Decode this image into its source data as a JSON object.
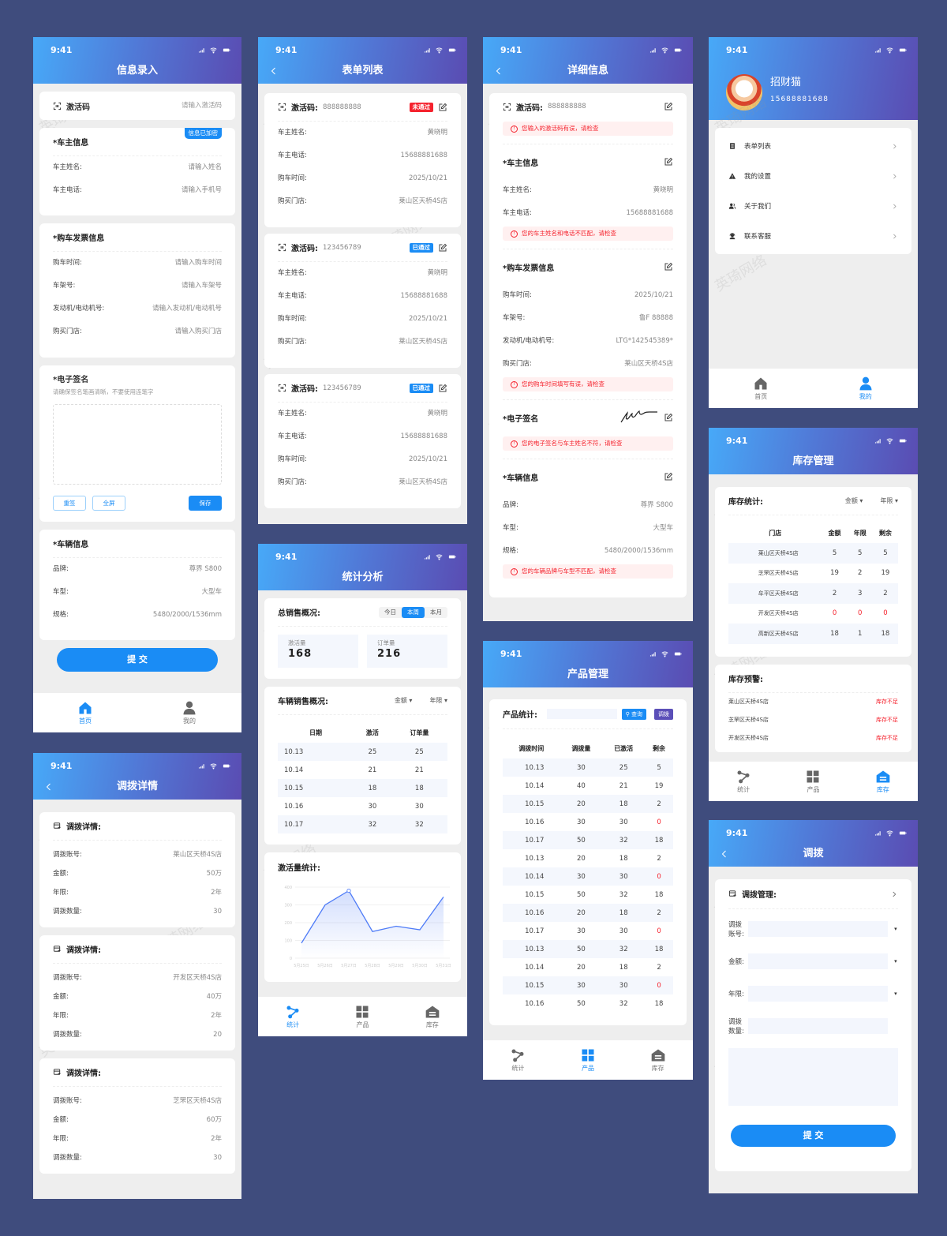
{
  "status_time": "9:41",
  "watermark": "英琦网络",
  "colors": {
    "primary": "#1a8cf5",
    "danger": "#f5222d",
    "header_start": "#47a9f8",
    "header_end": "#5a4cb2",
    "background": "#3f4c7d"
  },
  "entry": {
    "title": "信息录入",
    "code": {
      "label": "激活码",
      "placeholder": "请输入激活码",
      "icon": "scan-icon"
    },
    "owner": {
      "title": "*车主信息",
      "badge": "信息已加密",
      "rows": [
        {
          "label": "车主姓名:",
          "value": "请输入姓名"
        },
        {
          "label": "车主电话:",
          "value": "请输入手机号"
        }
      ]
    },
    "invoice": {
      "title": "*购车发票信息",
      "rows": [
        {
          "label": "购车时间:",
          "value": "请输入购车时间"
        },
        {
          "label": "车架号:",
          "value": "请输入车架号"
        },
        {
          "label": "发动机/电动机号:",
          "value": "请输入发动机/电动机号"
        },
        {
          "label": "购买门店:",
          "value": "请输入购买门店"
        }
      ]
    },
    "signature": {
      "title": "*电子签名",
      "hint": "请确保签名笔画清晰，不要使用连笔字",
      "buttons": [
        "重签",
        "全屏",
        "保存"
      ]
    },
    "vehicle": {
      "title": "*车辆信息",
      "rows": [
        {
          "label": "品牌:",
          "value": "尊界 S800"
        },
        {
          "label": "车型:",
          "value": "大型车"
        },
        {
          "label": "规格:",
          "value": "5480/2000/1536mm"
        }
      ]
    },
    "submit": "提 交",
    "tabs": [
      {
        "label": "首页",
        "icon": "home-icon",
        "active": true
      },
      {
        "label": "我的",
        "icon": "user-icon",
        "active": false
      }
    ]
  },
  "list": {
    "title": "表单列表",
    "items": [
      {
        "code_label": "激活码:",
        "code": "888888888",
        "status": "未通过",
        "status_color": "#f5222d",
        "rows": [
          {
            "label": "车主姓名:",
            "value": "黄晓明"
          },
          {
            "label": "车主电话:",
            "value": "15688881688"
          },
          {
            "label": "购车时间:",
            "value": "2025/10/21"
          },
          {
            "label": "购买门店:",
            "value": "莱山区天桥4S店"
          }
        ]
      },
      {
        "code_label": "激活码:",
        "code": "123456789",
        "status": "已通过",
        "status_color": "#1a8cf5",
        "rows": [
          {
            "label": "车主姓名:",
            "value": "黄晓明"
          },
          {
            "label": "车主电话:",
            "value": "15688881688"
          },
          {
            "label": "购车时间:",
            "value": "2025/10/21"
          },
          {
            "label": "购买门店:",
            "value": "莱山区天桥4S店"
          }
        ]
      },
      {
        "code_label": "激活码:",
        "code": "123456789",
        "status": "已通过",
        "status_color": "#1a8cf5",
        "rows": [
          {
            "label": "车主姓名:",
            "value": "黄晓明"
          },
          {
            "label": "车主电话:",
            "value": "15688881688"
          },
          {
            "label": "购车时间:",
            "value": "2025/10/21"
          },
          {
            "label": "购买门店:",
            "value": "莱山区天桥4S店"
          }
        ]
      }
    ]
  },
  "detail": {
    "title": "详细信息",
    "sections": [
      {
        "title": "激活码:",
        "value": "888888888",
        "icon": "scan-icon",
        "rows": [],
        "error": "您输入的激活码有误，请检查"
      },
      {
        "title": "*车主信息",
        "rows": [
          {
            "label": "车主姓名:",
            "value": "黄晓明"
          },
          {
            "label": "车主电话:",
            "value": "15688881688"
          }
        ],
        "error": "您的车主姓名和电话不匹配，请检查"
      },
      {
        "title": "*购车发票信息",
        "rows": [
          {
            "label": "购车时间:",
            "value": "2025/10/21"
          },
          {
            "label": "车架号:",
            "value": "鲁F 88888"
          },
          {
            "label": "发动机/电动机号:",
            "value": "LTG*142545389*"
          },
          {
            "label": "购买门店:",
            "value": "莱山区天桥4S店"
          }
        ],
        "error": "您的购车时间填写有误，请检查"
      },
      {
        "title": "*电子签名",
        "signature": true,
        "rows": [],
        "error": "您的电子签名与车主姓名不符，请检查"
      },
      {
        "title": "*车辆信息",
        "rows": [
          {
            "label": "品牌:",
            "value": "尊界 S800"
          },
          {
            "label": "车型:",
            "value": "大型车"
          },
          {
            "label": "规格:",
            "value": "5480/2000/1536mm"
          }
        ],
        "error": "您的车辆品牌与车型不匹配，请检查"
      }
    ]
  },
  "profile": {
    "name": "招财猫",
    "phone": "15688881688",
    "menu": [
      {
        "label": "表单列表",
        "icon": "document-icon"
      },
      {
        "label": "我的设置",
        "icon": "warning-icon"
      },
      {
        "label": "关于我们",
        "icon": "users-icon"
      },
      {
        "label": "联系客服",
        "icon": "headset-icon"
      }
    ],
    "tabs": [
      {
        "label": "首页",
        "icon": "home-icon",
        "active": false
      },
      {
        "label": "我的",
        "icon": "user-icon",
        "active": true
      }
    ]
  },
  "stats": {
    "title": "统计分析",
    "overview": {
      "title": "总销售概况:",
      "ranges": [
        "今日",
        "本周",
        "本月"
      ],
      "active_range": "本周",
      "metrics": [
        {
          "label": "激活量",
          "value": "168"
        },
        {
          "label": "订单量",
          "value": "216"
        }
      ]
    },
    "sales": {
      "title": "车辆销售概况:",
      "filters": [
        "金额",
        "年限"
      ],
      "columns": [
        "日期",
        "激活",
        "订单量"
      ],
      "rows": [
        [
          "10.13",
          "25",
          "25"
        ],
        [
          "10.14",
          "21",
          "21"
        ],
        [
          "10.15",
          "18",
          "18"
        ],
        [
          "10.16",
          "30",
          "30"
        ],
        [
          "10.17",
          "32",
          "32"
        ]
      ]
    },
    "chart_title": "激活量统计:",
    "tabs": [
      {
        "label": "统计",
        "icon": "stats-icon",
        "active": true
      },
      {
        "label": "产品",
        "icon": "grid-icon",
        "active": false
      },
      {
        "label": "库存",
        "icon": "warehouse-icon",
        "active": false
      }
    ]
  },
  "chart_data": {
    "type": "area",
    "title": "激活量统计:",
    "categories": [
      "5月25日",
      "5月26日",
      "5月27日",
      "5月28日",
      "5月29日",
      "5月30日",
      "5月31日"
    ],
    "values": [
      85,
      300,
      380,
      150,
      180,
      160,
      345
    ],
    "ylim": [
      0,
      400
    ],
    "yticks": [
      0,
      100,
      200,
      300,
      400
    ],
    "grid": true,
    "color": "#4f7cf7"
  },
  "inventory": {
    "title": "库存管理",
    "stats": {
      "title": "库存统计:",
      "filters": [
        "金额",
        "年限"
      ],
      "columns": [
        "门店",
        "金额",
        "年限",
        "剩余"
      ],
      "rows": [
        [
          "莱山区天桥4S店",
          "5",
          "5",
          "5"
        ],
        [
          "芝罘区天桥4S店",
          "19",
          "2",
          "19"
        ],
        [
          "牟平区天桥4S店",
          "2",
          "3",
          "2"
        ],
        [
          "开发区天桥4S店",
          "0",
          "0",
          "0"
        ],
        [
          "高新区天桥4S店",
          "18",
          "1",
          "18"
        ]
      ]
    },
    "warnings": {
      "title": "库存预警:",
      "items": [
        {
          "store": "莱山区天桥4S店",
          "status": "库存不足"
        },
        {
          "store": "芝罘区天桥4S店",
          "status": "库存不足"
        },
        {
          "store": "开发区天桥4S店",
          "status": "库存不足"
        }
      ]
    },
    "tabs": [
      {
        "label": "统计",
        "icon": "stats-icon",
        "active": false
      },
      {
        "label": "产品",
        "icon": "grid-icon",
        "active": false
      },
      {
        "label": "库存",
        "icon": "warehouse-icon",
        "active": true
      }
    ]
  },
  "tdetails": {
    "title": "调拨详情",
    "cards": [
      {
        "title": "调拨详情:",
        "rows": [
          {
            "label": "调拨账号:",
            "value": "莱山区天桥4S店"
          },
          {
            "label": "金额:",
            "value": "50万"
          },
          {
            "label": "年限:",
            "value": "2年"
          },
          {
            "label": "调拨数量:",
            "value": "30"
          }
        ]
      },
      {
        "title": "调拨详情:",
        "rows": [
          {
            "label": "调拨账号:",
            "value": "开发区天桥4S店"
          },
          {
            "label": "金额:",
            "value": "40万"
          },
          {
            "label": "年限:",
            "value": "2年"
          },
          {
            "label": "调拨数量:",
            "value": "20"
          }
        ]
      },
      {
        "title": "调拨详情:",
        "rows": [
          {
            "label": "调拨账号:",
            "value": "芝罘区天桥4S店"
          },
          {
            "label": "金额:",
            "value": "60万"
          },
          {
            "label": "年限:",
            "value": "2年"
          },
          {
            "label": "调拨数量:",
            "value": "30"
          }
        ]
      }
    ]
  },
  "products": {
    "title": "产品管理",
    "label": "产品统计:",
    "search_value": "",
    "search_button": "查询",
    "transfer_button": "调拨",
    "columns": [
      "调拨时间",
      "调拨量",
      "已激活",
      "剩余"
    ],
    "rows": [
      [
        "10.13",
        "30",
        "25",
        "5"
      ],
      [
        "10.14",
        "40",
        "21",
        "19"
      ],
      [
        "10.15",
        "20",
        "18",
        "2"
      ],
      [
        "10.16",
        "30",
        "30",
        "0"
      ],
      [
        "10.17",
        "50",
        "32",
        "18"
      ],
      [
        "10.13",
        "20",
        "18",
        "2"
      ],
      [
        "10.14",
        "30",
        "30",
        "0"
      ],
      [
        "10.15",
        "50",
        "32",
        "18"
      ],
      [
        "10.16",
        "20",
        "18",
        "2"
      ],
      [
        "10.17",
        "30",
        "30",
        "0"
      ],
      [
        "10.13",
        "50",
        "32",
        "18"
      ],
      [
        "10.14",
        "20",
        "18",
        "2"
      ],
      [
        "10.15",
        "30",
        "30",
        "0"
      ],
      [
        "10.16",
        "50",
        "32",
        "18"
      ]
    ],
    "tabs": [
      {
        "label": "统计",
        "icon": "stats-icon",
        "active": false
      },
      {
        "label": "产品",
        "icon": "grid-icon",
        "active": true
      },
      {
        "label": "库存",
        "icon": "warehouse-icon",
        "active": false
      }
    ]
  },
  "transfer": {
    "title": "调拨",
    "section": "调拨管理:",
    "fields": [
      {
        "label": "调拨账号:",
        "value": "",
        "dropdown": true
      },
      {
        "label": "金额:",
        "value": "",
        "dropdown": true
      },
      {
        "label": "年限:",
        "value": "",
        "dropdown": true
      },
      {
        "label": "调拨数量:",
        "value": "",
        "dropdown": false
      }
    ],
    "remark": "",
    "submit": "提 交"
  }
}
